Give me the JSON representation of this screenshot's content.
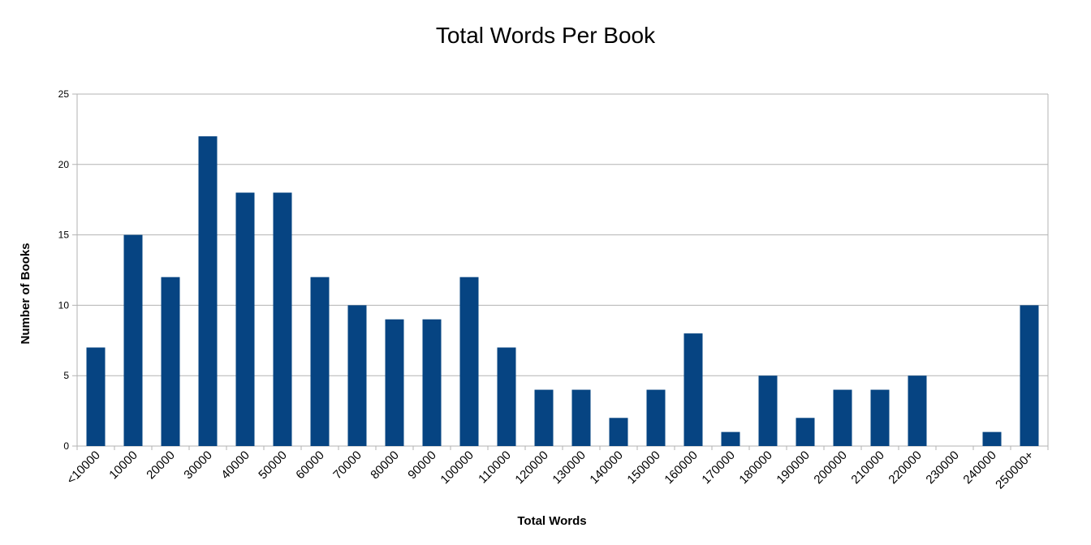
{
  "chart_data": {
    "type": "bar",
    "title": "Total Words Per Book",
    "xlabel": "Total Words",
    "ylabel": "Number of Books",
    "ylim": [
      0,
      25
    ],
    "yticks": [
      0,
      5,
      10,
      15,
      20,
      25
    ],
    "grid": true,
    "legend": "none",
    "bar_color": "#064482",
    "categories": [
      "<10000",
      "10000",
      "20000",
      "30000",
      "40000",
      "50000",
      "60000",
      "70000",
      "80000",
      "90000",
      "100000",
      "110000",
      "120000",
      "130000",
      "140000",
      "150000",
      "160000",
      "170000",
      "180000",
      "190000",
      "200000",
      "210000",
      "220000",
      "230000",
      "240000",
      "250000+"
    ],
    "values": [
      7,
      15,
      12,
      22,
      18,
      18,
      12,
      10,
      9,
      9,
      12,
      7,
      4,
      4,
      2,
      4,
      8,
      1,
      5,
      2,
      4,
      4,
      5,
      0,
      1,
      10
    ]
  }
}
